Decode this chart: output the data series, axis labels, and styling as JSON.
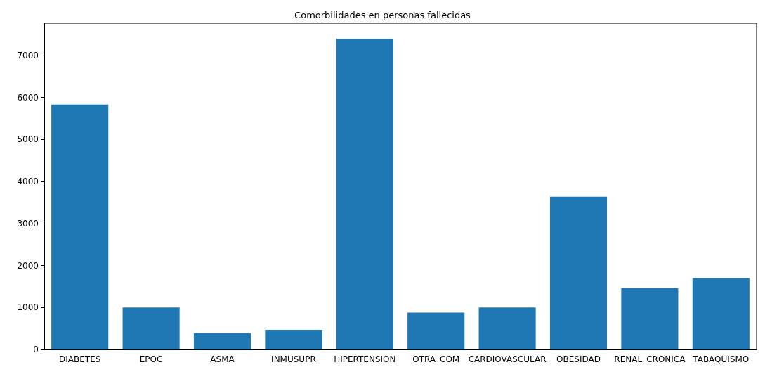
{
  "chart_data": {
    "type": "bar",
    "title": "Comorbilidades en personas fallecidas",
    "categories": [
      "DIABETES",
      "EPOC",
      "ASMA",
      "INMUSUPR",
      "HIPERTENSION",
      "OTRA_COM",
      "CARDIOVASCULAR",
      "OBESIDAD",
      "RENAL_CRONICA",
      "TABAQUISMO"
    ],
    "values": [
      5830,
      1000,
      390,
      470,
      7400,
      880,
      1000,
      3640,
      1460,
      1700
    ],
    "color": "#1f77b4",
    "ylim": [
      0,
      7770
    ],
    "yticks": [
      0,
      1000,
      2000,
      3000,
      4000,
      5000,
      6000,
      7000
    ],
    "grid": false
  }
}
